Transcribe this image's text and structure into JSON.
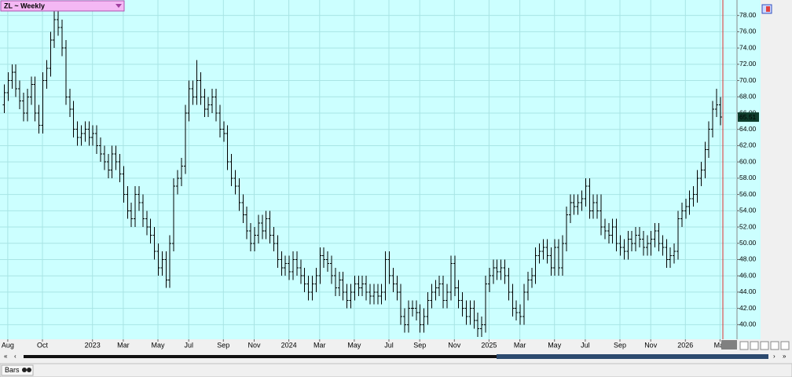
{
  "chart_data": {
    "type": "ohlc",
    "title": "ZL ~ Weekly",
    "color": "#000000",
    "grid": true,
    "ylim": [
      38.2,
      79.9
    ],
    "yticks": [
      {
        "value": 40,
        "label": "40.00"
      },
      {
        "value": 42,
        "label": "42.00"
      },
      {
        "value": 44,
        "label": "44.00"
      },
      {
        "value": 46,
        "label": "46.00"
      },
      {
        "value": 48,
        "label": "48.00"
      },
      {
        "value": 50,
        "label": "50.00"
      },
      {
        "value": 52,
        "label": "52.00"
      },
      {
        "value": 54,
        "label": "54.00"
      },
      {
        "value": 56,
        "label": "56.00"
      },
      {
        "value": 58,
        "label": "58.00"
      },
      {
        "value": 60,
        "label": "60.00"
      },
      {
        "value": 62,
        "label": "62.00"
      },
      {
        "value": 64,
        "label": "64.00"
      },
      {
        "value": 66,
        "label": "66.00"
      },
      {
        "value": 68,
        "label": "68.00"
      },
      {
        "value": 70,
        "label": "70.00"
      },
      {
        "value": 72,
        "label": "72.00"
      },
      {
        "value": 74,
        "label": "74.00"
      },
      {
        "value": 76,
        "label": "76.00"
      },
      {
        "value": 78,
        "label": "78.00"
      }
    ],
    "xticks": [
      {
        "value": 1,
        "label": "Aug"
      },
      {
        "value": 10,
        "label": "Oct"
      },
      {
        "value": 23,
        "label": "2023"
      },
      {
        "value": 31,
        "label": "Mar"
      },
      {
        "value": 40,
        "label": "May"
      },
      {
        "value": 48,
        "label": "Jul"
      },
      {
        "value": 57,
        "label": "Sep"
      },
      {
        "value": 65,
        "label": "Nov"
      },
      {
        "value": 74,
        "label": "2024"
      },
      {
        "value": 82,
        "label": "Mar"
      },
      {
        "value": 91,
        "label": "May"
      },
      {
        "value": 100,
        "label": "Jul"
      },
      {
        "value": 108,
        "label": "Sep"
      },
      {
        "value": 117,
        "label": "Nov"
      },
      {
        "value": 126,
        "label": "2025"
      },
      {
        "value": 134,
        "label": "Mar"
      },
      {
        "value": 143,
        "label": "May"
      },
      {
        "value": 151,
        "label": "Jul"
      },
      {
        "value": 160,
        "label": "Sep"
      },
      {
        "value": 168,
        "label": "Nov"
      },
      {
        "value": 177,
        "label": "2026"
      },
      {
        "value": 186,
        "label": "Mar"
      }
    ],
    "open": [
      67,
      68.5,
      70,
      71,
      69,
      67.5,
      66,
      68,
      69.5,
      66,
      64.5,
      70,
      71.5,
      75,
      77.5,
      76.5,
      74,
      68,
      66.5,
      64,
      63,
      63.5,
      64,
      63,
      63.5,
      62,
      61,
      60,
      59,
      61,
      60,
      58.5,
      56,
      54,
      53,
      56,
      55,
      53,
      52,
      51,
      49,
      47,
      48,
      45.5,
      50,
      57,
      58,
      59.5,
      66,
      69,
      68,
      70,
      68,
      66.5,
      67,
      68,
      66,
      64,
      63.5,
      60,
      58,
      57,
      55,
      53.5,
      51.5,
      50,
      51,
      52.5,
      51.5,
      53,
      51,
      50,
      48,
      47,
      47.5,
      46.5,
      48,
      47,
      46,
      45,
      44,
      45,
      46,
      48.5,
      48,
      47.5,
      46,
      44.5,
      45.5,
      44,
      43,
      44,
      45,
      44.5,
      45,
      44,
      43.5,
      44,
      43.5,
      44,
      48,
      46,
      45,
      44,
      41,
      40,
      42,
      42,
      41.5,
      40,
      41,
      43,
      44,
      44.5,
      45,
      43,
      44,
      47.5,
      44.5,
      43,
      42,
      41,
      42,
      40.5,
      39.5,
      40,
      45,
      46,
      47,
      46.5,
      47,
      46,
      44,
      42,
      41.5,
      41,
      44,
      45.5,
      46,
      48.5,
      49,
      49.5,
      48.5,
      47,
      49.5,
      47,
      50,
      53.5,
      55,
      54.5,
      55,
      55.5,
      57,
      54,
      55,
      54,
      52,
      51.5,
      51,
      52,
      50,
      49.5,
      49,
      50.5,
      50,
      51,
      50.5,
      49.5,
      50,
      50.5,
      51.5,
      50,
      49.5,
      48,
      48.5,
      49,
      53,
      54,
      54.5,
      55.5,
      56,
      58,
      59,
      61.5,
      64,
      66.5,
      67
    ],
    "high": [
      69.5,
      71,
      72,
      72,
      70,
      68.5,
      69,
      70.5,
      70.5,
      67,
      71,
      72.5,
      76,
      78.5,
      78.5,
      77.5,
      75,
      69,
      67.5,
      65,
      64.5,
      65,
      65,
      64.5,
      64.5,
      63,
      62,
      61,
      62,
      62,
      61,
      59.5,
      57,
      55,
      57,
      57,
      56,
      54,
      53,
      52,
      50,
      49,
      49,
      51,
      58,
      59,
      60.5,
      67,
      70,
      70,
      72.5,
      71,
      69,
      68,
      69,
      69,
      67,
      65,
      64.5,
      61,
      59,
      58,
      56,
      54.5,
      52.5,
      52,
      53.5,
      53.5,
      54,
      54,
      52,
      51,
      49,
      48.5,
      48.5,
      49,
      49,
      48,
      47,
      46,
      46,
      47,
      49.5,
      49.5,
      49,
      48.5,
      47,
      46.5,
      46.5,
      45,
      45,
      46,
      46,
      46,
      46,
      45,
      45,
      45,
      45,
      49,
      49,
      47,
      46,
      45,
      42,
      43,
      43,
      43,
      42.5,
      42,
      44,
      45,
      45.5,
      46,
      46,
      45,
      48.5,
      48.5,
      45.5,
      44,
      43,
      43,
      43,
      41.5,
      41,
      46,
      47,
      48,
      48,
      48,
      48,
      47,
      45,
      43,
      42.5,
      45,
      46.5,
      47,
      49.5,
      50,
      50.5,
      50.5,
      49.5,
      50.5,
      50.5,
      51,
      54.5,
      56,
      56,
      56,
      56.5,
      58,
      58,
      56,
      56,
      56,
      53,
      52.5,
      53,
      53,
      51,
      50.5,
      51.5,
      51.5,
      52,
      52,
      51.5,
      51,
      51.5,
      52.5,
      52.5,
      51,
      50.5,
      49.5,
      50,
      54,
      55,
      55.5,
      56.5,
      57,
      59,
      60,
      62.5,
      65,
      67.5,
      69,
      68
    ],
    "low": [
      66,
      67.5,
      69,
      68,
      66.5,
      65,
      65,
      67,
      65,
      63.5,
      63.5,
      69,
      70.5,
      74,
      75.5,
      73,
      67,
      65.5,
      63,
      62,
      62,
      62.5,
      62,
      62,
      61,
      60,
      59,
      58,
      58,
      59,
      57.5,
      55,
      53,
      52,
      52,
      54,
      52,
      51,
      50,
      48,
      46,
      46,
      44.5,
      44.5,
      49,
      56,
      57,
      58.5,
      65,
      67,
      67,
      67,
      65.5,
      65.5,
      66,
      65,
      63,
      62.5,
      59,
      57,
      56,
      54,
      52.5,
      50.5,
      49,
      49,
      50,
      50.5,
      50.5,
      50,
      49,
      47,
      46,
      46,
      45.5,
      45.5,
      46,
      45,
      44,
      43,
      43,
      44,
      45,
      47,
      46.5,
      45,
      43.5,
      43.5,
      43,
      42,
      42,
      43,
      43.5,
      43.5,
      43,
      42.5,
      42.5,
      42.5,
      42.5,
      43,
      45,
      44,
      43,
      40,
      39,
      39,
      41,
      40.5,
      39,
      39,
      40,
      42,
      43,
      43.5,
      42,
      42,
      43,
      43.5,
      42,
      41,
      40,
      40,
      39.5,
      38.5,
      38.5,
      39,
      44,
      45,
      45.5,
      45.5,
      45,
      43,
      41,
      40.5,
      40,
      40,
      43,
      44.5,
      45,
      47.5,
      48,
      47.5,
      46,
      46,
      46,
      46,
      49,
      52.5,
      53.5,
      53.5,
      54,
      54.5,
      53,
      53,
      53,
      51,
      50.5,
      50,
      50,
      49,
      48.5,
      48,
      48,
      49,
      49,
      49.5,
      48.5,
      48.5,
      48.5,
      49.5,
      49,
      48.5,
      47,
      47,
      47.5,
      48,
      52,
      53,
      53.5,
      54.5,
      55,
      57,
      58,
      60.5,
      63,
      65.5,
      64.5
    ],
    "close": [
      68.5,
      70,
      71,
      69,
      67.5,
      66,
      68,
      69.5,
      66,
      64.5,
      70,
      71.5,
      75,
      77.5,
      76.5,
      74,
      68,
      66.5,
      64,
      63,
      63.5,
      64,
      63,
      63.5,
      62,
      61,
      60,
      59,
      61,
      60,
      58.5,
      56,
      54,
      53,
      56,
      55,
      53,
      52,
      51,
      49,
      47,
      48,
      45.5,
      50,
      57,
      58,
      59.5,
      66,
      69,
      68,
      70,
      68,
      66.5,
      67,
      68,
      66,
      64,
      63.5,
      60,
      58,
      57,
      55,
      53.5,
      51.5,
      50,
      51,
      52.5,
      51.5,
      53,
      51,
      50,
      48,
      47,
      47.5,
      46.5,
      48,
      47,
      46,
      45,
      44,
      45,
      46,
      48.5,
      48,
      47.5,
      46,
      44.5,
      45.5,
      44,
      43,
      44,
      45,
      44.5,
      45,
      44,
      43.5,
      44,
      43.5,
      44,
      48,
      46,
      45,
      44,
      41,
      40,
      42,
      42,
      41.5,
      40,
      41,
      43,
      44,
      44.5,
      45,
      43,
      44,
      47.5,
      44.5,
      43,
      42,
      41,
      42,
      40.5,
      39.5,
      40,
      45,
      46,
      47,
      46.5,
      47,
      46,
      44,
      42,
      41.5,
      41,
      44,
      45.5,
      46,
      48.5,
      49,
      49.5,
      48.5,
      47,
      49.5,
      47,
      50,
      53.5,
      55,
      54.5,
      55,
      55.5,
      57,
      54,
      55,
      54,
      52,
      51.5,
      51,
      52,
      50,
      49.5,
      49,
      50.5,
      50,
      51,
      50.5,
      49.5,
      50,
      50.5,
      51.5,
      50,
      49.5,
      48,
      48.5,
      49,
      53,
      54,
      54.5,
      55.5,
      56,
      58,
      59,
      61.5,
      64,
      66.5,
      67,
      65.51
    ]
  },
  "toolbar": {
    "label": "Bars"
  }
}
